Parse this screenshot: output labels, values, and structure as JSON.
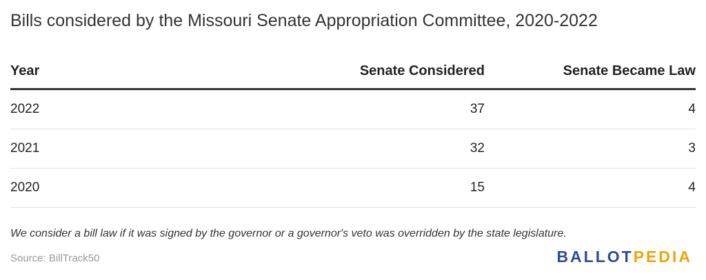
{
  "title": "Bills considered by the Missouri Senate Appropriation Committee, 2020-2022",
  "table": {
    "headers": [
      "Year",
      "Senate Considered",
      "Senate Became Law"
    ],
    "rows": [
      [
        "2022",
        "37",
        "4"
      ],
      [
        "2021",
        "32",
        "3"
      ],
      [
        "2020",
        "15",
        "4"
      ]
    ]
  },
  "note": "We consider a bill law if it was signed by the governor or a governor's veto was overridden by the state legislature.",
  "source": "Source: BillTrack50",
  "logo": {
    "part1": "BALLOT",
    "part2": "PEDIA",
    "colors": {
      "part1": "#2d4b9a",
      "part2": "#f0a30a"
    }
  }
}
